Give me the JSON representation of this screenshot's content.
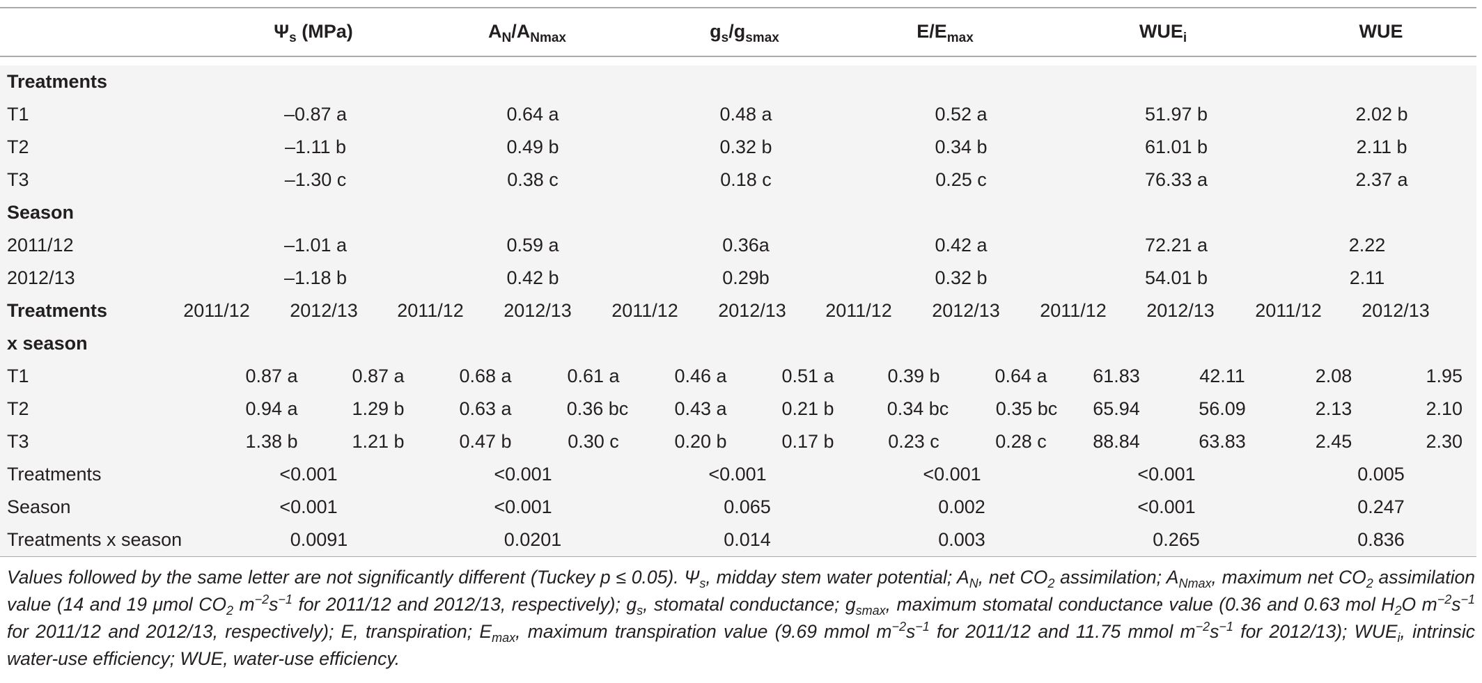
{
  "header": {
    "psi_symbol": "Ψ",
    "psi_sub": "s",
    "psi_unit": " (MPa)",
    "an": {
      "main": "A",
      "sub": "N",
      "sep": "/",
      "main2": "A",
      "sub2": "Nmax"
    },
    "gs": {
      "main": "g",
      "sub": "s",
      "sep": "/",
      "main2": "g",
      "sub2": "smax"
    },
    "e": {
      "main": "E/E",
      "sub": "max"
    },
    "wuei": {
      "main": "WUE",
      "sub": "i"
    },
    "wue": "WUE"
  },
  "treatments_section": {
    "label": "Treatments",
    "rows": [
      {
        "name": "T1",
        "values": [
          "–0.87 a",
          "0.64 a",
          "0.48 a",
          "0.52 a",
          "51.97 b",
          "2.02 b"
        ]
      },
      {
        "name": "T2",
        "values": [
          "–1.11 b",
          "0.49 b",
          "0.32 b",
          "0.34 b",
          "61.01 b",
          "2.11 b"
        ]
      },
      {
        "name": "T3",
        "values": [
          "–1.30 c",
          "0.38 c",
          "0.18 c",
          "0.25 c",
          "76.33 a",
          "2.37 a"
        ]
      }
    ]
  },
  "season_section": {
    "label": "Season",
    "rows": [
      {
        "name": "2011/12",
        "values": [
          "–1.01 a",
          "0.59 a",
          "0.36a",
          "0.42 a",
          "72.21 a",
          "2.22"
        ]
      },
      {
        "name": "2012/13",
        "values": [
          "–1.18 b",
          "0.42 b",
          "0.29b",
          "0.32 b",
          "54.01 b",
          "2.11"
        ]
      }
    ]
  },
  "interaction_section": {
    "label_line1": "Treatments",
    "label_line2": "x season",
    "season_headers": [
      "2011/12",
      "2012/13",
      "2011/12",
      "2012/13",
      "2011/12",
      "2012/13",
      "2011/12",
      "2012/13",
      "2011/12",
      "2012/13",
      "2011/12",
      "2012/13"
    ],
    "rows": [
      {
        "name": "T1",
        "values": [
          "0.87 a",
          "0.87 a",
          "0.68 a",
          "0.61 a",
          "0.46 a",
          "0.51 a",
          "0.39 b",
          "0.64 a",
          "61.83",
          "42.11",
          "2.08",
          "1.95"
        ]
      },
      {
        "name": "T2",
        "values": [
          "0.94 a",
          "1.29 b",
          "0.63 a",
          "0.36 bc",
          "0.43 a",
          "0.21 b",
          "0.34 bc",
          "0.35 bc",
          "65.94",
          "56.09",
          "2.13",
          "2.10"
        ]
      },
      {
        "name": "T3",
        "values": [
          "1.38 b",
          "1.21 b",
          "0.47 b",
          "0.30 c",
          "0.20 b",
          "0.17 b",
          "0.23 c",
          "0.28 c",
          "88.84",
          "63.83",
          "2.45",
          "2.30"
        ]
      }
    ]
  },
  "pvalues": [
    {
      "name": "Treatments",
      "values": [
        "<0.001",
        "<0.001",
        "<0.001",
        "<0.001",
        "<0.001",
        "0.005"
      ]
    },
    {
      "name": "Season",
      "values": [
        "<0.001",
        "<0.001",
        "0.065",
        "0.002",
        "<0.001",
        "0.247"
      ]
    },
    {
      "name": "Treatments x season",
      "values": [
        "0.0091",
        "0.0201",
        "0.014",
        "0.003",
        "0.265",
        "0.836"
      ]
    }
  ],
  "footnote": {
    "t1": "Values followed by the same letter are not significantly different (Tuckey p ≤ 0.05). Ψ",
    "t1s": "s",
    "t2": ", midday stem water potential; A",
    "t2s": "N",
    "t3": ", net CO",
    "t3s": "2",
    "t4": " assimilation; A",
    "t4s": "Nmax",
    "t5": ", maximum net CO",
    "t5s": "2",
    "t6": " assimilation value (14 and 19 μmol CO",
    "t6s": "2",
    "t7": " m",
    "t7p": "−2",
    "t8": "s",
    "t8p": "−1",
    "t9": " for 2011/12 and 2012/13, respectively); g",
    "t9s": "s",
    "t10": ", stomatal conductance; g",
    "t10s": "smax",
    "t11": ", maximum stomatal conductance value (0.36 and 0.63 mol H",
    "t11s": "2",
    "t12": "O m",
    "t12p": "−2",
    "t13": "s",
    "t13p": "−1",
    "t14": " for 2011/12 and 2012/13, respectively); E, transpiration; E",
    "t14s": "max",
    "t15": ", maximum transpiration value (9.69 mmol m",
    "t15p": "−2",
    "t16": "s",
    "t16p": "−1",
    "t17": " for 2011/12 and 11.75 mmol m",
    "t17p": "−2",
    "t18": "s",
    "t18p": "−1",
    "t19": " for 2012/13); WUE",
    "t19s": "i",
    "t20": ", intrinsic water-use efficiency; WUE, water-use efficiency."
  }
}
